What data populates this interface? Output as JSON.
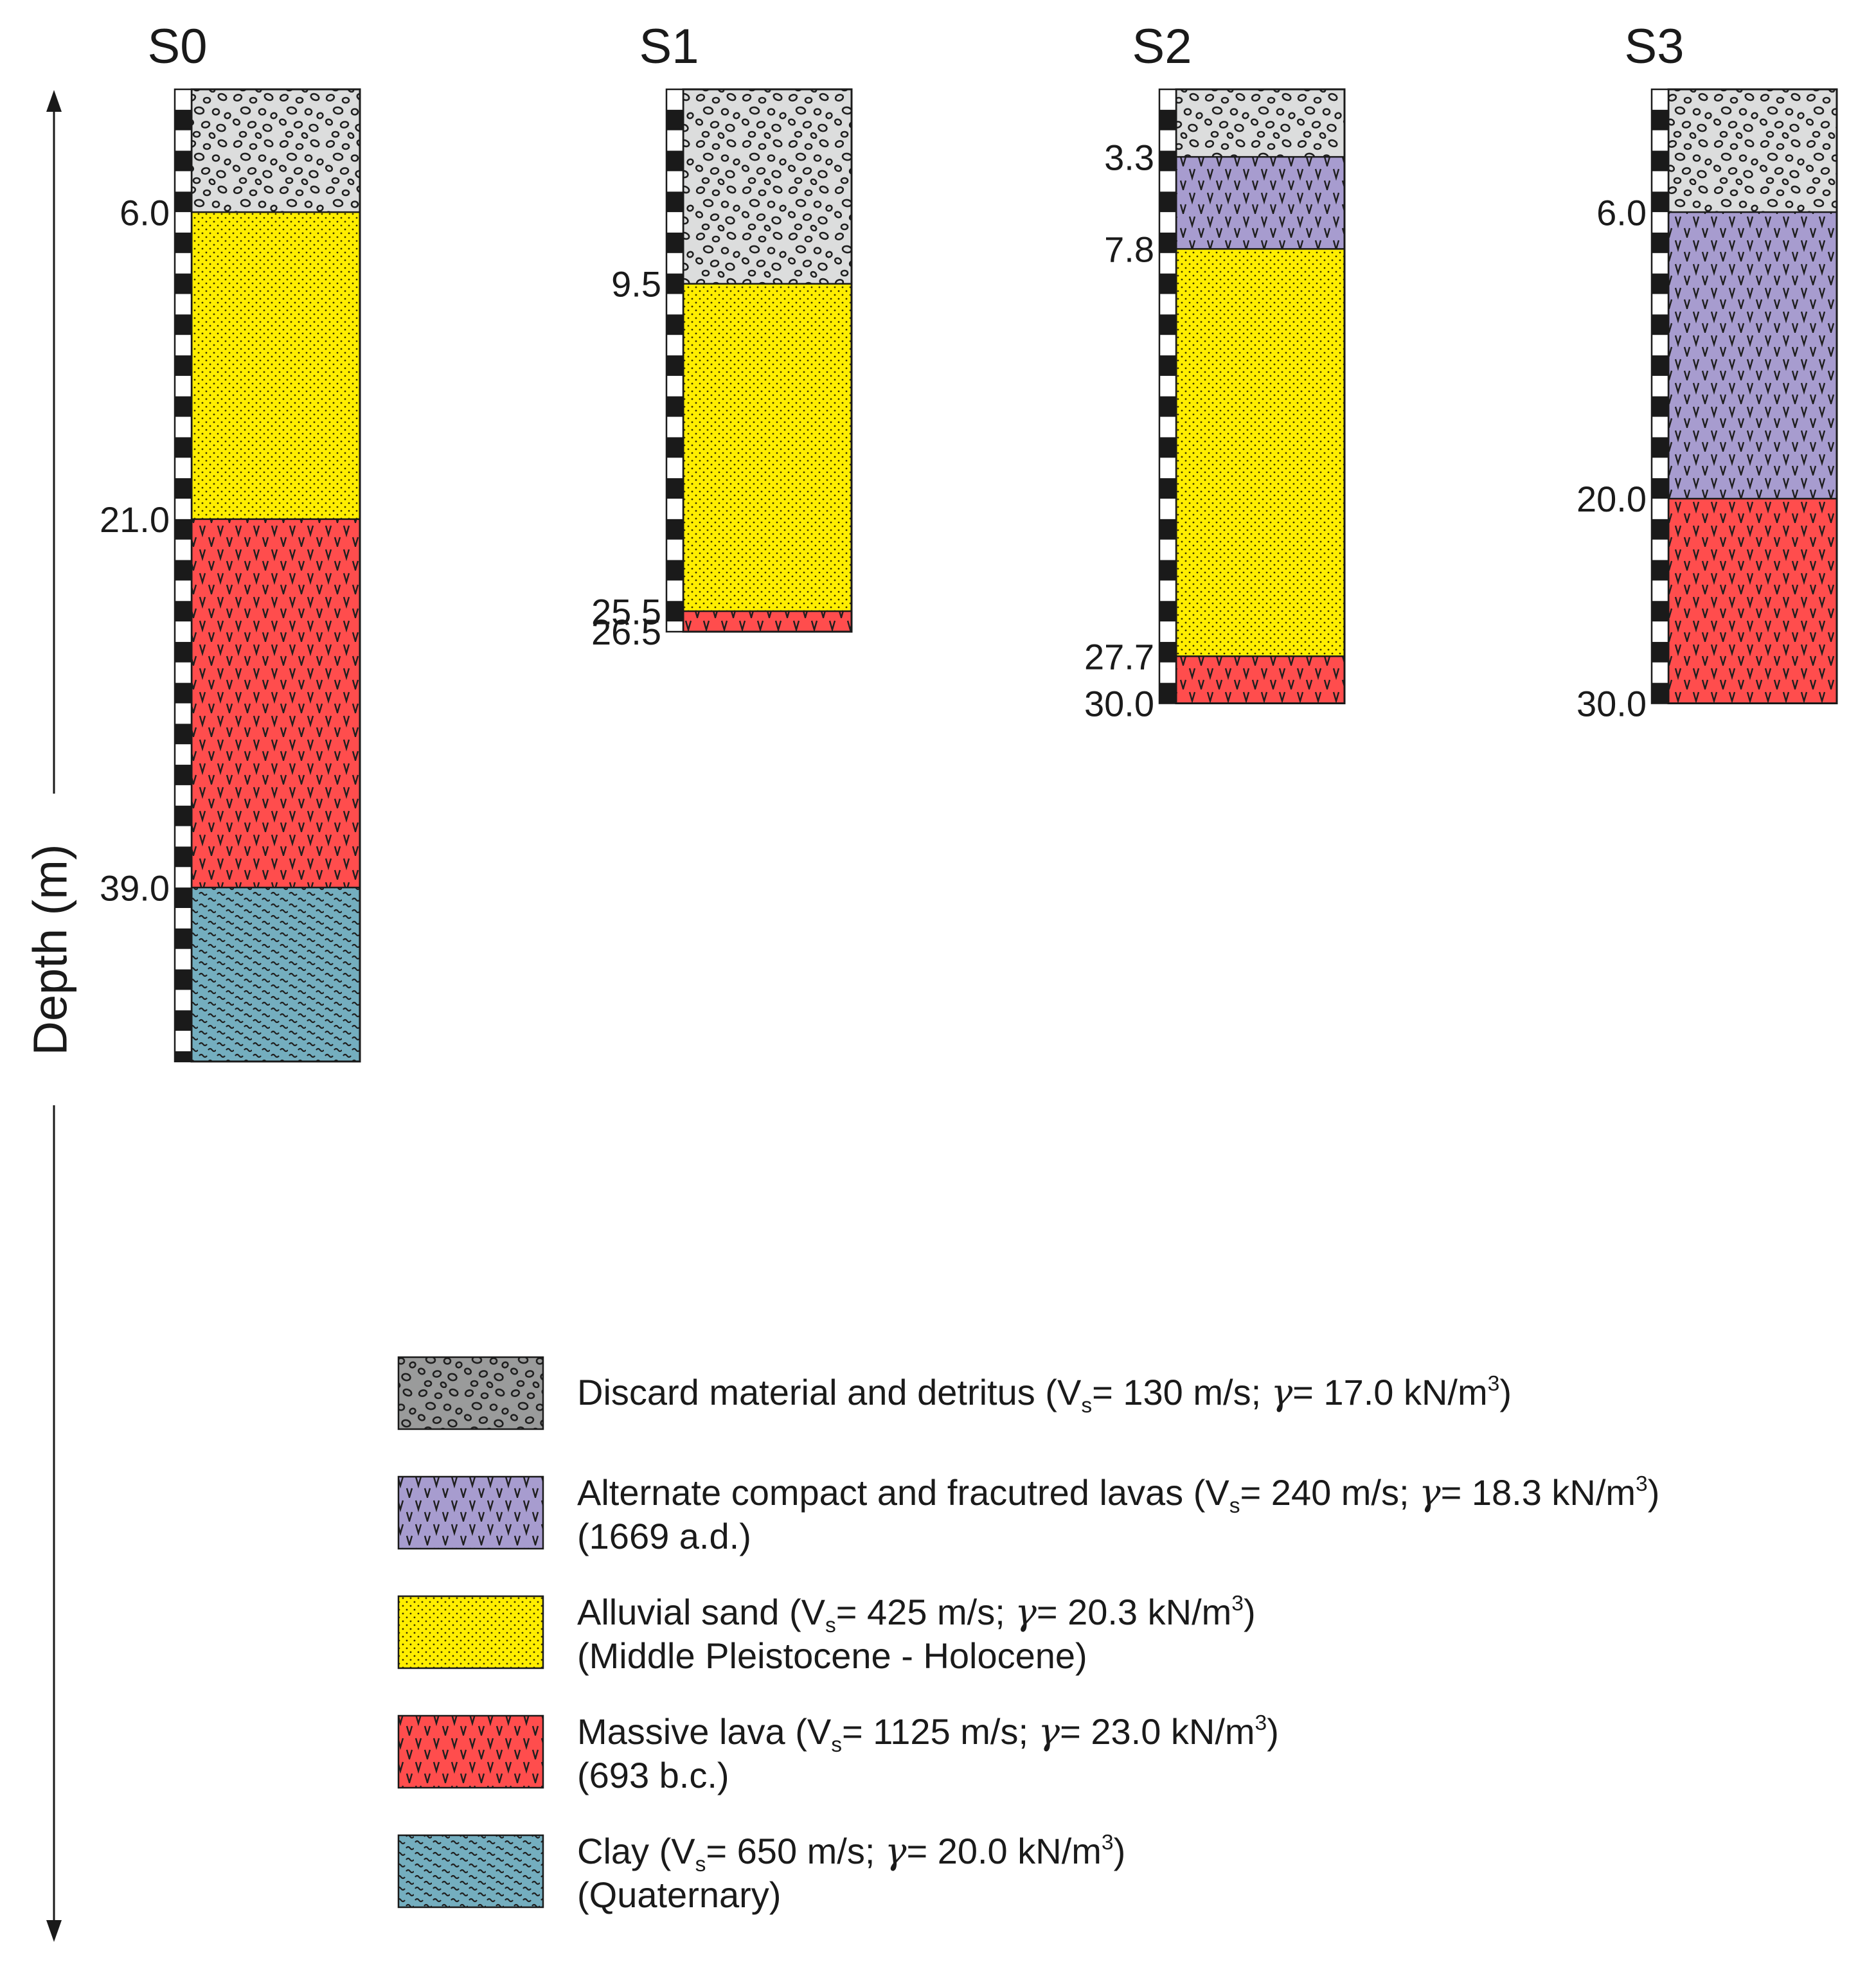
{
  "axis": {
    "label": "Depth (m)"
  },
  "units": {
    "vs": "V",
    "vs_sub": "s",
    "gamma": "γ",
    "velocity": "m/s",
    "weight": "kN/m",
    "weight_sup": "3"
  },
  "materials": {
    "detritus": {
      "name": "Discard material and detritus",
      "vs": "130",
      "gamma": "17.0",
      "age": "",
      "pattern": "gravel",
      "color": "#dcdddd",
      "legend_color": "#9a9b9b"
    },
    "alt_lava": {
      "name": "Alternate compact and fracutred lavas",
      "vs": "240",
      "gamma": "18.3",
      "age": "(1669 a.d.)",
      "pattern": "v",
      "color": "#a79ccf"
    },
    "sand": {
      "name": "Alluvial sand",
      "vs": "425",
      "gamma": "20.3",
      "age": "(Middle Pleistocene - Holocene)",
      "pattern": "dots",
      "color": "#ffee00"
    },
    "lava": {
      "name": "Massive lava",
      "vs": "1125",
      "gamma": "23.0",
      "age": "(693 b.c.)",
      "pattern": "v",
      "color": "#ff4d4d"
    },
    "clay": {
      "name": "Clay",
      "vs": "650",
      "gamma": "20.0",
      "age": "(Quaternary)",
      "pattern": "wave",
      "color": "#74aebf"
    }
  },
  "legend_order": [
    "detritus",
    "alt_lava",
    "sand",
    "lava",
    "clay"
  ],
  "boreholes": [
    {
      "id": "S0",
      "total_depth": 47.5,
      "layers": [
        {
          "material": "detritus",
          "top": 0,
          "bottom": 6.0
        },
        {
          "material": "sand",
          "top": 6.0,
          "bottom": 21.0
        },
        {
          "material": "lava",
          "top": 21.0,
          "bottom": 39.0
        },
        {
          "material": "clay",
          "top": 39.0,
          "bottom": 47.5
        }
      ],
      "depth_labels": [
        {
          "depth": 6.0,
          "text": "6.0"
        },
        {
          "depth": 21.0,
          "text": "21.0"
        },
        {
          "depth": 39.0,
          "text": "39.0"
        }
      ]
    },
    {
      "id": "S1",
      "total_depth": 26.5,
      "layers": [
        {
          "material": "detritus",
          "top": 0,
          "bottom": 9.5
        },
        {
          "material": "sand",
          "top": 9.5,
          "bottom": 25.5
        },
        {
          "material": "lava",
          "top": 25.5,
          "bottom": 26.5
        }
      ],
      "depth_labels": [
        {
          "depth": 9.5,
          "text": "9.5"
        },
        {
          "depth": 25.5,
          "text": "25.5"
        },
        {
          "depth": 26.5,
          "text": "26.5"
        }
      ]
    },
    {
      "id": "S2",
      "total_depth": 30.0,
      "layers": [
        {
          "material": "detritus",
          "top": 0,
          "bottom": 3.3
        },
        {
          "material": "alt_lava",
          "top": 3.3,
          "bottom": 7.8
        },
        {
          "material": "sand",
          "top": 7.8,
          "bottom": 27.7
        },
        {
          "material": "lava",
          "top": 27.7,
          "bottom": 30.0
        }
      ],
      "depth_labels": [
        {
          "depth": 3.3,
          "text": "3.3"
        },
        {
          "depth": 7.8,
          "text": "7.8"
        },
        {
          "depth": 27.7,
          "text": "27.7"
        },
        {
          "depth": 30.0,
          "text": "30.0"
        }
      ]
    },
    {
      "id": "S3",
      "total_depth": 30.0,
      "layers": [
        {
          "material": "detritus",
          "top": 0,
          "bottom": 6.0
        },
        {
          "material": "alt_lava",
          "top": 6.0,
          "bottom": 20.0
        },
        {
          "material": "lava",
          "top": 20.0,
          "bottom": 30.0
        }
      ],
      "depth_labels": [
        {
          "depth": 6.0,
          "text": "6.0"
        },
        {
          "depth": 20.0,
          "text": "20.0"
        },
        {
          "depth": 30.0,
          "text": "30.0"
        }
      ]
    }
  ]
}
